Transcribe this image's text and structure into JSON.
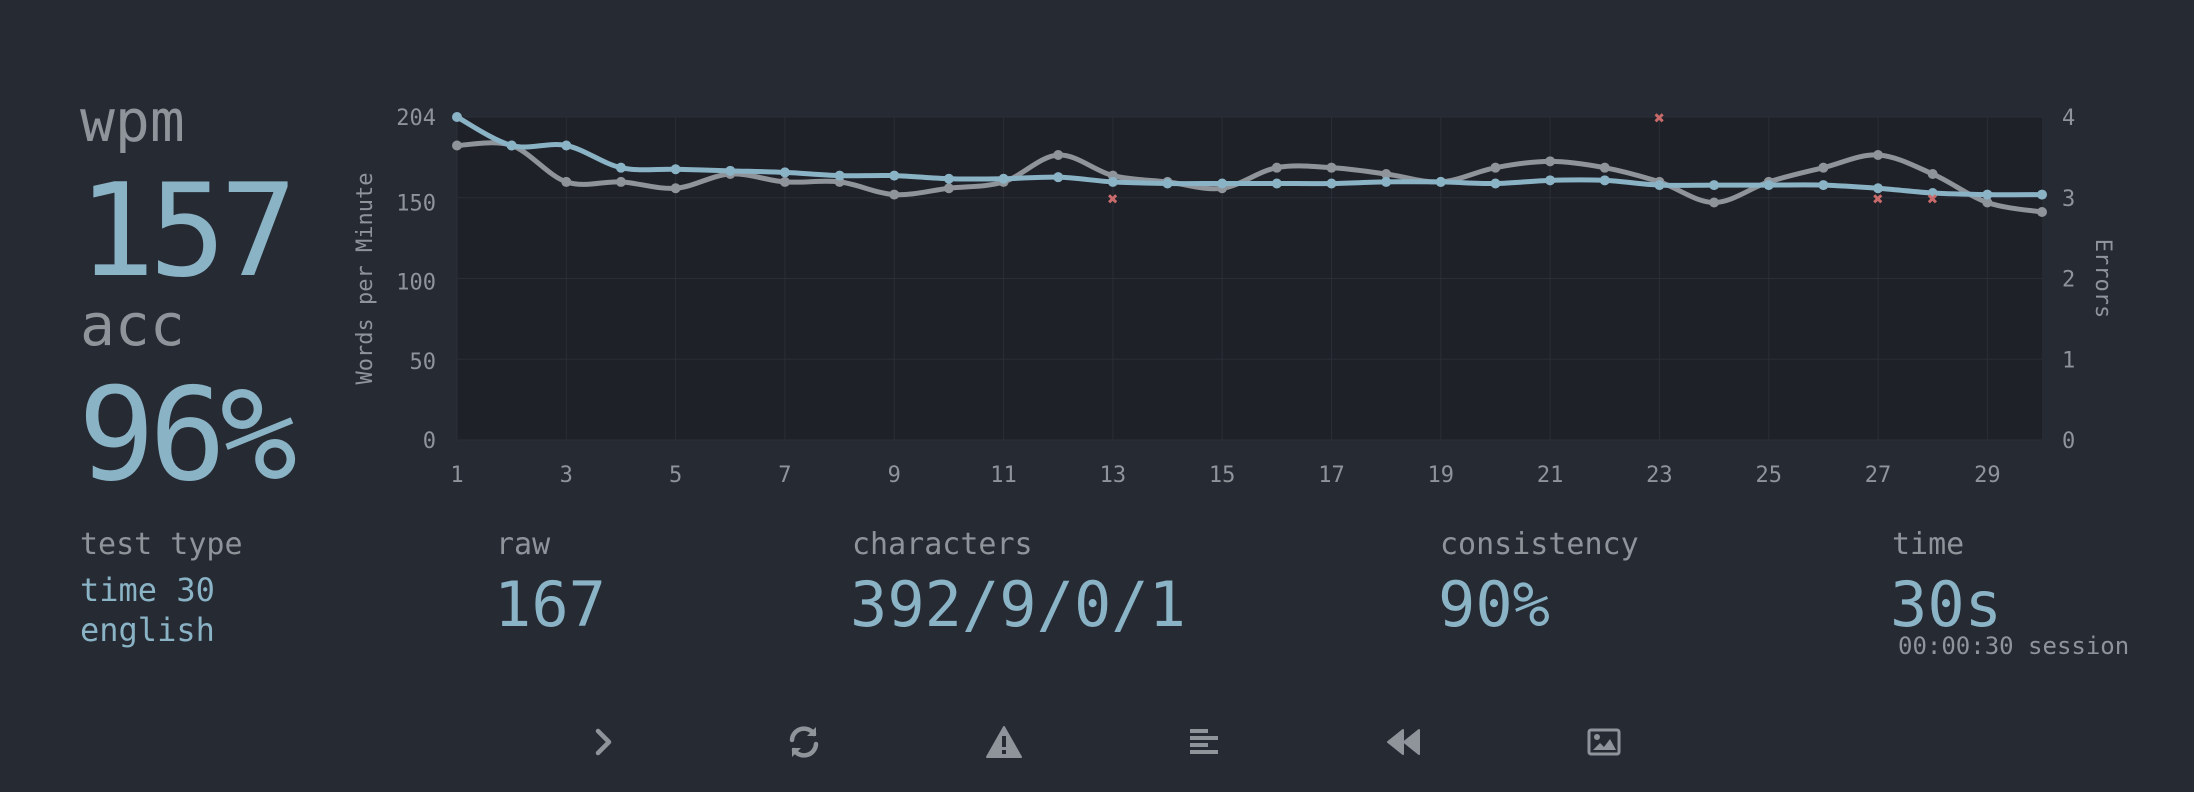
{
  "stats": {
    "wpm_label": "wpm",
    "wpm_value": "157",
    "acc_label": "acc",
    "acc_value": "96%",
    "test_type_label": "test type",
    "test_type_mode": "time 30",
    "test_type_language": "english",
    "raw_label": "raw",
    "raw_value": "167",
    "characters_label": "characters",
    "characters_value": "392/9/0/1",
    "consistency_label": "consistency",
    "consistency_value": "90%",
    "time_label": "time",
    "time_value": "30s",
    "session_text": "00:00:30 session"
  },
  "actions": [
    {
      "name": "next-test-button",
      "icon": "chevron-right-icon"
    },
    {
      "name": "restart-button",
      "icon": "sync-icon"
    },
    {
      "name": "show-words-history-button",
      "icon": "warning-icon"
    },
    {
      "name": "replay-button",
      "icon": "align-left-icon"
    },
    {
      "name": "previous-button",
      "icon": "backward-icon"
    },
    {
      "name": "screenshot-button",
      "icon": "image-icon"
    }
  ],
  "colors": {
    "background": "#262a33",
    "wpm_line": "#8ab3c6",
    "raw_line": "#8f939a",
    "errors": "#c96b6b",
    "label": "#8f939a"
  },
  "chart_data": {
    "type": "line",
    "ylabel": "Words per Minute",
    "y2label": "Errors",
    "ylim": [
      0,
      204
    ],
    "y2lim": [
      0,
      4
    ],
    "xlim": [
      1,
      30
    ],
    "x_ticks": [
      1,
      3,
      5,
      7,
      9,
      11,
      13,
      15,
      17,
      19,
      21,
      23,
      25,
      27,
      29
    ],
    "y_ticks": [
      0,
      50,
      100,
      150,
      204
    ],
    "y2_ticks": [
      0,
      1,
      2,
      3,
      4
    ],
    "grid": true,
    "x": [
      1,
      2,
      3,
      4,
      5,
      6,
      7,
      8,
      9,
      10,
      11,
      12,
      13,
      14,
      15,
      16,
      17,
      18,
      19,
      20,
      21,
      22,
      23,
      24,
      25,
      26,
      27,
      28,
      29,
      30
    ],
    "series": [
      {
        "values": [
          204,
          186,
          186,
          172,
          171,
          170,
          169,
          167,
          167,
          165,
          165,
          166,
          163,
          162,
          162,
          162,
          162,
          163,
          163,
          162,
          164,
          164,
          161,
          161,
          161,
          161,
          159,
          156,
          155,
          155
        ]
      },
      {
        "values": [
          186,
          186,
          163,
          163,
          159,
          168,
          163,
          163,
          155,
          159,
          163,
          180,
          167,
          163,
          159,
          172,
          172,
          168,
          163,
          172,
          176,
          172,
          163,
          150,
          163,
          172,
          180,
          168,
          150,
          144
        ]
      }
    ],
    "errors": [
      {
        "x": 13,
        "y": 3
      },
      {
        "x": 23,
        "y": 4
      },
      {
        "x": 27,
        "y": 3
      },
      {
        "x": 28,
        "y": 3
      }
    ]
  }
}
